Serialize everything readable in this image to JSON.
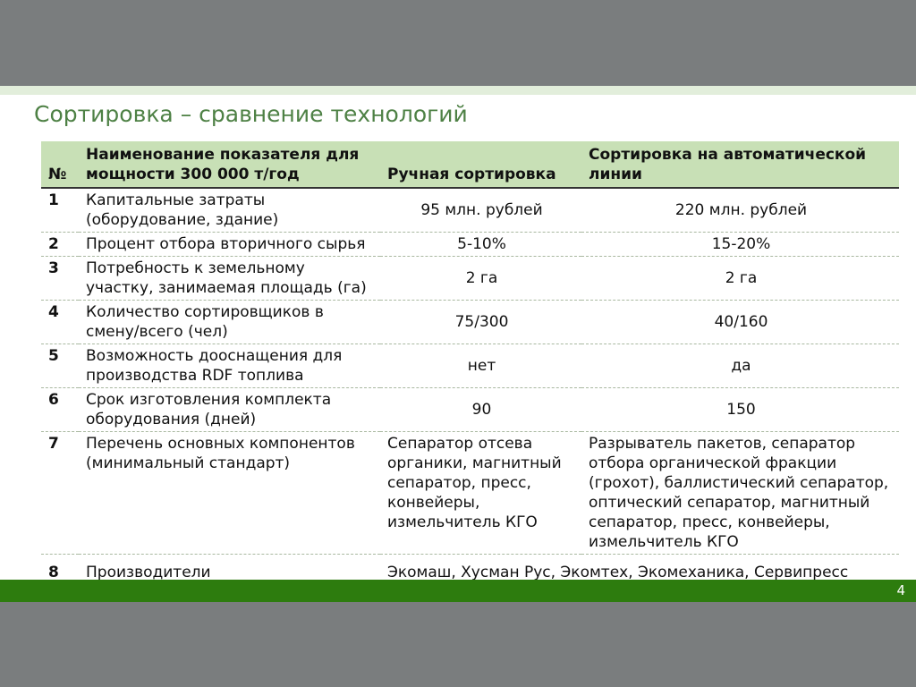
{
  "slide": {
    "title": "Сортировка – сравнение технологий",
    "page_number": "4",
    "colors": {
      "accent_green": "#4e8145",
      "table_header_bg": "#c8e0b6",
      "footer_bar_green": "#2d7c0e",
      "frame_gray": "#7a7d7e",
      "strip_green": "#e2eedb"
    }
  },
  "table": {
    "headers": {
      "num": "№",
      "indicator": "Наименование показателя для мощности 300 000 т/год",
      "manual": "Ручная сортировка",
      "auto": "Сортировка на автоматической линии"
    },
    "rows": [
      {
        "num": "1",
        "name": "Капитальные затраты (оборудование, здание)",
        "manual": "95 млн. рублей",
        "auto": "220 млн. рублей"
      },
      {
        "num": "2",
        "name": "Процент отбора вторичного сырья",
        "manual": "5-10%",
        "auto": "15-20%"
      },
      {
        "num": "3",
        "name": "Потребность к земельному участку, занимаемая площадь (га)",
        "manual": "2 га",
        "auto": "2 га"
      },
      {
        "num": "4",
        "name": "Количество сортировщиков в смену/всего (чел)",
        "manual": "75/300",
        "auto": "40/160"
      },
      {
        "num": "5",
        "name": "Возможность дооснащения для производства RDF топлива",
        "manual": "нет",
        "auto": "да"
      },
      {
        "num": "6",
        "name": "Срок изготовления комплекта оборудования (дней)",
        "manual": "90",
        "auto": "150"
      },
      {
        "num": "7",
        "name": "Перечень основных компонентов (минимальный стандарт)",
        "manual": "Сепаратор отсева органики, магнитный сепаратор, пресс, конвейеры, измельчитель КГО",
        "auto": "Разрыватель пакетов, сепаратор отбора органической фракции (грохот), баллистический сепаратор, оптический сепаратор, магнитный сепаратор, пресс, конвейеры, измельчитель КГО"
      },
      {
        "num": "8",
        "name": "Производители",
        "combined": "Экомаш, Хусман Рус, Экомтех, Экомеханика, Сервипресс"
      }
    ]
  }
}
